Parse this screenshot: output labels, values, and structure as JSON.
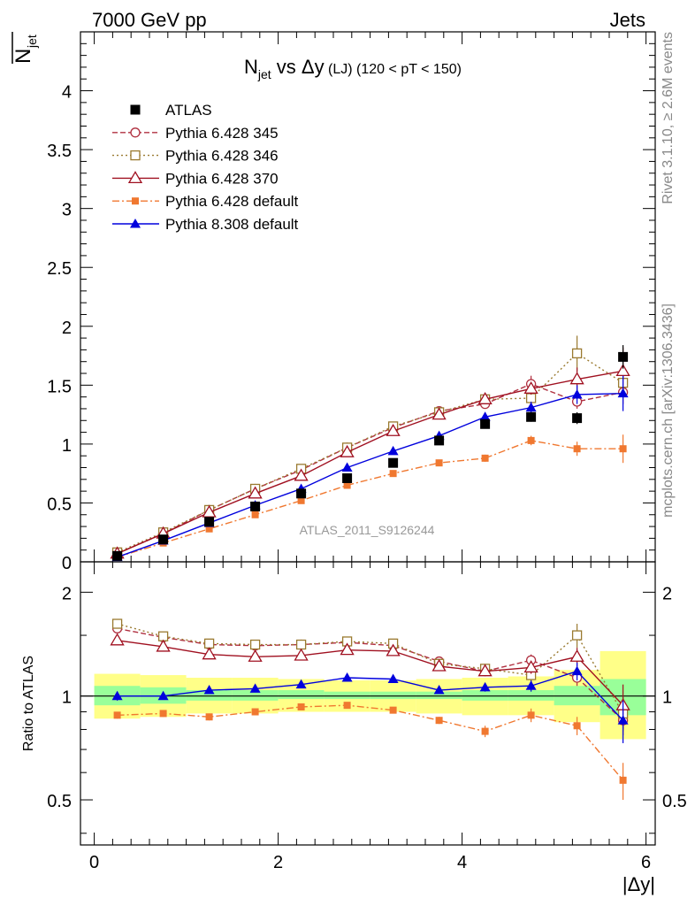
{
  "header": {
    "left": "7000 GeV pp",
    "right": "Jets",
    "side_top": "Rivet 3.1.10, ≥ 2.6M events",
    "side_bottom": "mcplots.cern.ch [arXiv:1306.3436]",
    "watermark": "ATLAS_2011_S9126244"
  },
  "chart_data": [
    {
      "type": "scatter",
      "title_main": "N",
      "title_sub": "jet",
      "title_rest": " vs Δy",
      "title_small": " (LJ)",
      "title_tail": " (120 < pT < 150)",
      "ylabel_main": "N",
      "ylabel_sub": "jet",
      "xlim": [
        -0.15,
        6.1
      ],
      "ylim": [
        0,
        4.5
      ],
      "yticks": [
        0,
        0.5,
        1,
        1.5,
        2,
        2.5,
        3,
        3.5,
        4
      ],
      "ytick_labels": [
        "0",
        "0.5",
        "1",
        "1.5",
        "2",
        "2.5",
        "3",
        "3.5",
        "4"
      ],
      "x": [
        0.25,
        0.75,
        1.25,
        1.75,
        2.25,
        2.75,
        3.25,
        3.75,
        4.25,
        4.75,
        5.25,
        5.75
      ],
      "legend_position": "top-left",
      "series": [
        {
          "name": "ATLAS",
          "color": "#000000",
          "marker": "square-filled",
          "line": "none",
          "values": [
            0.05,
            0.19,
            0.34,
            0.47,
            0.58,
            0.71,
            0.84,
            1.03,
            1.17,
            1.23,
            1.22,
            1.74
          ],
          "errors": [
            0.005,
            0.01,
            0.02,
            0.02,
            0.02,
            0.03,
            0.03,
            0.03,
            0.03,
            0.04,
            0.05,
            0.1
          ]
        },
        {
          "name": "Pythia 6.428 345",
          "color": "#b03040",
          "marker": "circle-open",
          "line": "dashed",
          "values": [
            0.07,
            0.24,
            0.44,
            0.62,
            0.78,
            0.97,
            1.14,
            1.28,
            1.34,
            1.51,
            1.36,
            1.44
          ],
          "errors": [
            0.005,
            0.01,
            0.01,
            0.02,
            0.02,
            0.02,
            0.03,
            0.03,
            0.04,
            0.07,
            0.06,
            0.1
          ]
        },
        {
          "name": "Pythia 6.428 346",
          "color": "#9a7a30",
          "marker": "square-open",
          "line": "dotted",
          "values": [
            0.08,
            0.25,
            0.44,
            0.62,
            0.79,
            0.97,
            1.15,
            1.27,
            1.38,
            1.39,
            1.77,
            1.52
          ],
          "errors": [
            0.005,
            0.01,
            0.01,
            0.02,
            0.02,
            0.02,
            0.03,
            0.03,
            0.04,
            0.06,
            0.15,
            0.12
          ]
        },
        {
          "name": "Pythia 6.428 370",
          "color": "#a01020",
          "marker": "triangle-open",
          "line": "solid",
          "values": [
            0.07,
            0.24,
            0.42,
            0.58,
            0.73,
            0.93,
            1.11,
            1.25,
            1.38,
            1.47,
            1.55,
            1.62
          ],
          "errors": [
            0.005,
            0.01,
            0.01,
            0.02,
            0.02,
            0.02,
            0.03,
            0.03,
            0.04,
            0.05,
            0.1,
            0.2
          ]
        },
        {
          "name": "Pythia 6.428 default",
          "color": "#f07830",
          "marker": "square-filled-small",
          "line": "dashdot",
          "values": [
            0.04,
            0.16,
            0.28,
            0.4,
            0.52,
            0.65,
            0.75,
            0.84,
            0.88,
            1.03,
            0.96,
            0.96
          ],
          "errors": [
            0.004,
            0.01,
            0.01,
            0.02,
            0.02,
            0.02,
            0.02,
            0.02,
            0.03,
            0.04,
            0.06,
            0.12
          ]
        },
        {
          "name": "Pythia 8.308 default",
          "color": "#0000dd",
          "marker": "triangle-filled",
          "line": "solid",
          "values": [
            0.04,
            0.18,
            0.33,
            0.48,
            0.62,
            0.8,
            0.94,
            1.07,
            1.23,
            1.31,
            1.42,
            1.43
          ],
          "errors": [
            0.004,
            0.01,
            0.01,
            0.02,
            0.02,
            0.02,
            0.02,
            0.03,
            0.04,
            0.05,
            0.08,
            0.15
          ]
        }
      ]
    },
    {
      "type": "scatter",
      "ylabel": "Ratio to ATLAS",
      "xlabel": "|Δy|",
      "log_y": true,
      "xlim": [
        -0.15,
        6.1
      ],
      "ylim": [
        0.37,
        2.45
      ],
      "yticks": [
        0.5,
        1,
        2
      ],
      "ytick_labels": [
        "0.5",
        "1",
        "2"
      ],
      "xticks": [
        0,
        2,
        4,
        6
      ],
      "xtick_labels": [
        "0",
        "2",
        "4",
        "6"
      ],
      "x": [
        0.25,
        0.75,
        1.25,
        1.75,
        2.25,
        2.75,
        3.25,
        3.75,
        4.25,
        4.75,
        5.25,
        5.75
      ],
      "band_edges": [
        0,
        0.5,
        1,
        1.5,
        2,
        2.5,
        3,
        3.5,
        4,
        4.5,
        5,
        5.5,
        6
      ],
      "band_inner": [
        [
          0.94,
          1.07
        ],
        [
          0.95,
          1.06
        ],
        [
          0.97,
          1.04
        ],
        [
          0.97,
          1.04
        ],
        [
          0.98,
          1.04
        ],
        [
          0.98,
          1.03
        ],
        [
          0.98,
          1.03
        ],
        [
          0.98,
          1.03
        ],
        [
          0.97,
          1.04
        ],
        [
          0.97,
          1.04
        ],
        [
          0.94,
          1.07
        ],
        [
          0.88,
          1.12
        ]
      ],
      "band_outer": [
        [
          0.86,
          1.16
        ],
        [
          0.87,
          1.15
        ],
        [
          0.89,
          1.13
        ],
        [
          0.89,
          1.13
        ],
        [
          0.9,
          1.12
        ],
        [
          0.9,
          1.11
        ],
        [
          0.9,
          1.11
        ],
        [
          0.89,
          1.12
        ],
        [
          0.88,
          1.13
        ],
        [
          0.88,
          1.14
        ],
        [
          0.84,
          1.19
        ],
        [
          0.75,
          1.35
        ]
      ],
      "band_colors": {
        "inner": "#99ff99",
        "outer": "#ffff88"
      },
      "series": [
        {
          "name": "Pythia 6.428 345",
          "color": "#b03040",
          "marker": "circle-open",
          "line": "dashed",
          "values": [
            1.57,
            1.48,
            1.41,
            1.4,
            1.41,
            1.43,
            1.4,
            1.26,
            1.18,
            1.27,
            1.13,
            0.85
          ],
          "errors": [
            0.02,
            0.02,
            0.02,
            0.02,
            0.02,
            0.02,
            0.02,
            0.02,
            0.03,
            0.05,
            0.06,
            0.08
          ]
        },
        {
          "name": "Pythia 6.428 346",
          "color": "#9a7a30",
          "marker": "square-open",
          "line": "dotted",
          "values": [
            1.62,
            1.49,
            1.42,
            1.41,
            1.41,
            1.44,
            1.42,
            1.24,
            1.2,
            1.15,
            1.5,
            0.89
          ],
          "errors": [
            0.02,
            0.02,
            0.02,
            0.02,
            0.02,
            0.02,
            0.02,
            0.02,
            0.03,
            0.05,
            0.12,
            0.1
          ]
        },
        {
          "name": "Pythia 6.428 370",
          "color": "#a01020",
          "marker": "triangle-open",
          "line": "solid",
          "values": [
            1.45,
            1.39,
            1.32,
            1.3,
            1.31,
            1.36,
            1.35,
            1.22,
            1.18,
            1.21,
            1.3,
            0.94
          ],
          "errors": [
            0.02,
            0.02,
            0.02,
            0.02,
            0.02,
            0.02,
            0.02,
            0.02,
            0.03,
            0.05,
            0.08,
            0.14
          ]
        },
        {
          "name": "Pythia 6.428 default",
          "color": "#f07830",
          "marker": "square-filled-small",
          "line": "dashdot",
          "values": [
            0.88,
            0.89,
            0.87,
            0.9,
            0.93,
            0.94,
            0.91,
            0.85,
            0.79,
            0.88,
            0.82,
            0.57
          ],
          "errors": [
            0.02,
            0.02,
            0.02,
            0.02,
            0.02,
            0.02,
            0.02,
            0.02,
            0.03,
            0.04,
            0.05,
            0.07
          ]
        },
        {
          "name": "Pythia 8.308 default",
          "color": "#0000dd",
          "marker": "triangle-filled",
          "line": "solid",
          "values": [
            1.0,
            1.0,
            1.04,
            1.05,
            1.08,
            1.13,
            1.12,
            1.04,
            1.06,
            1.07,
            1.18,
            0.85
          ],
          "errors": [
            0.03,
            0.02,
            0.02,
            0.02,
            0.02,
            0.02,
            0.02,
            0.02,
            0.03,
            0.04,
            0.07,
            0.12
          ]
        }
      ]
    }
  ]
}
